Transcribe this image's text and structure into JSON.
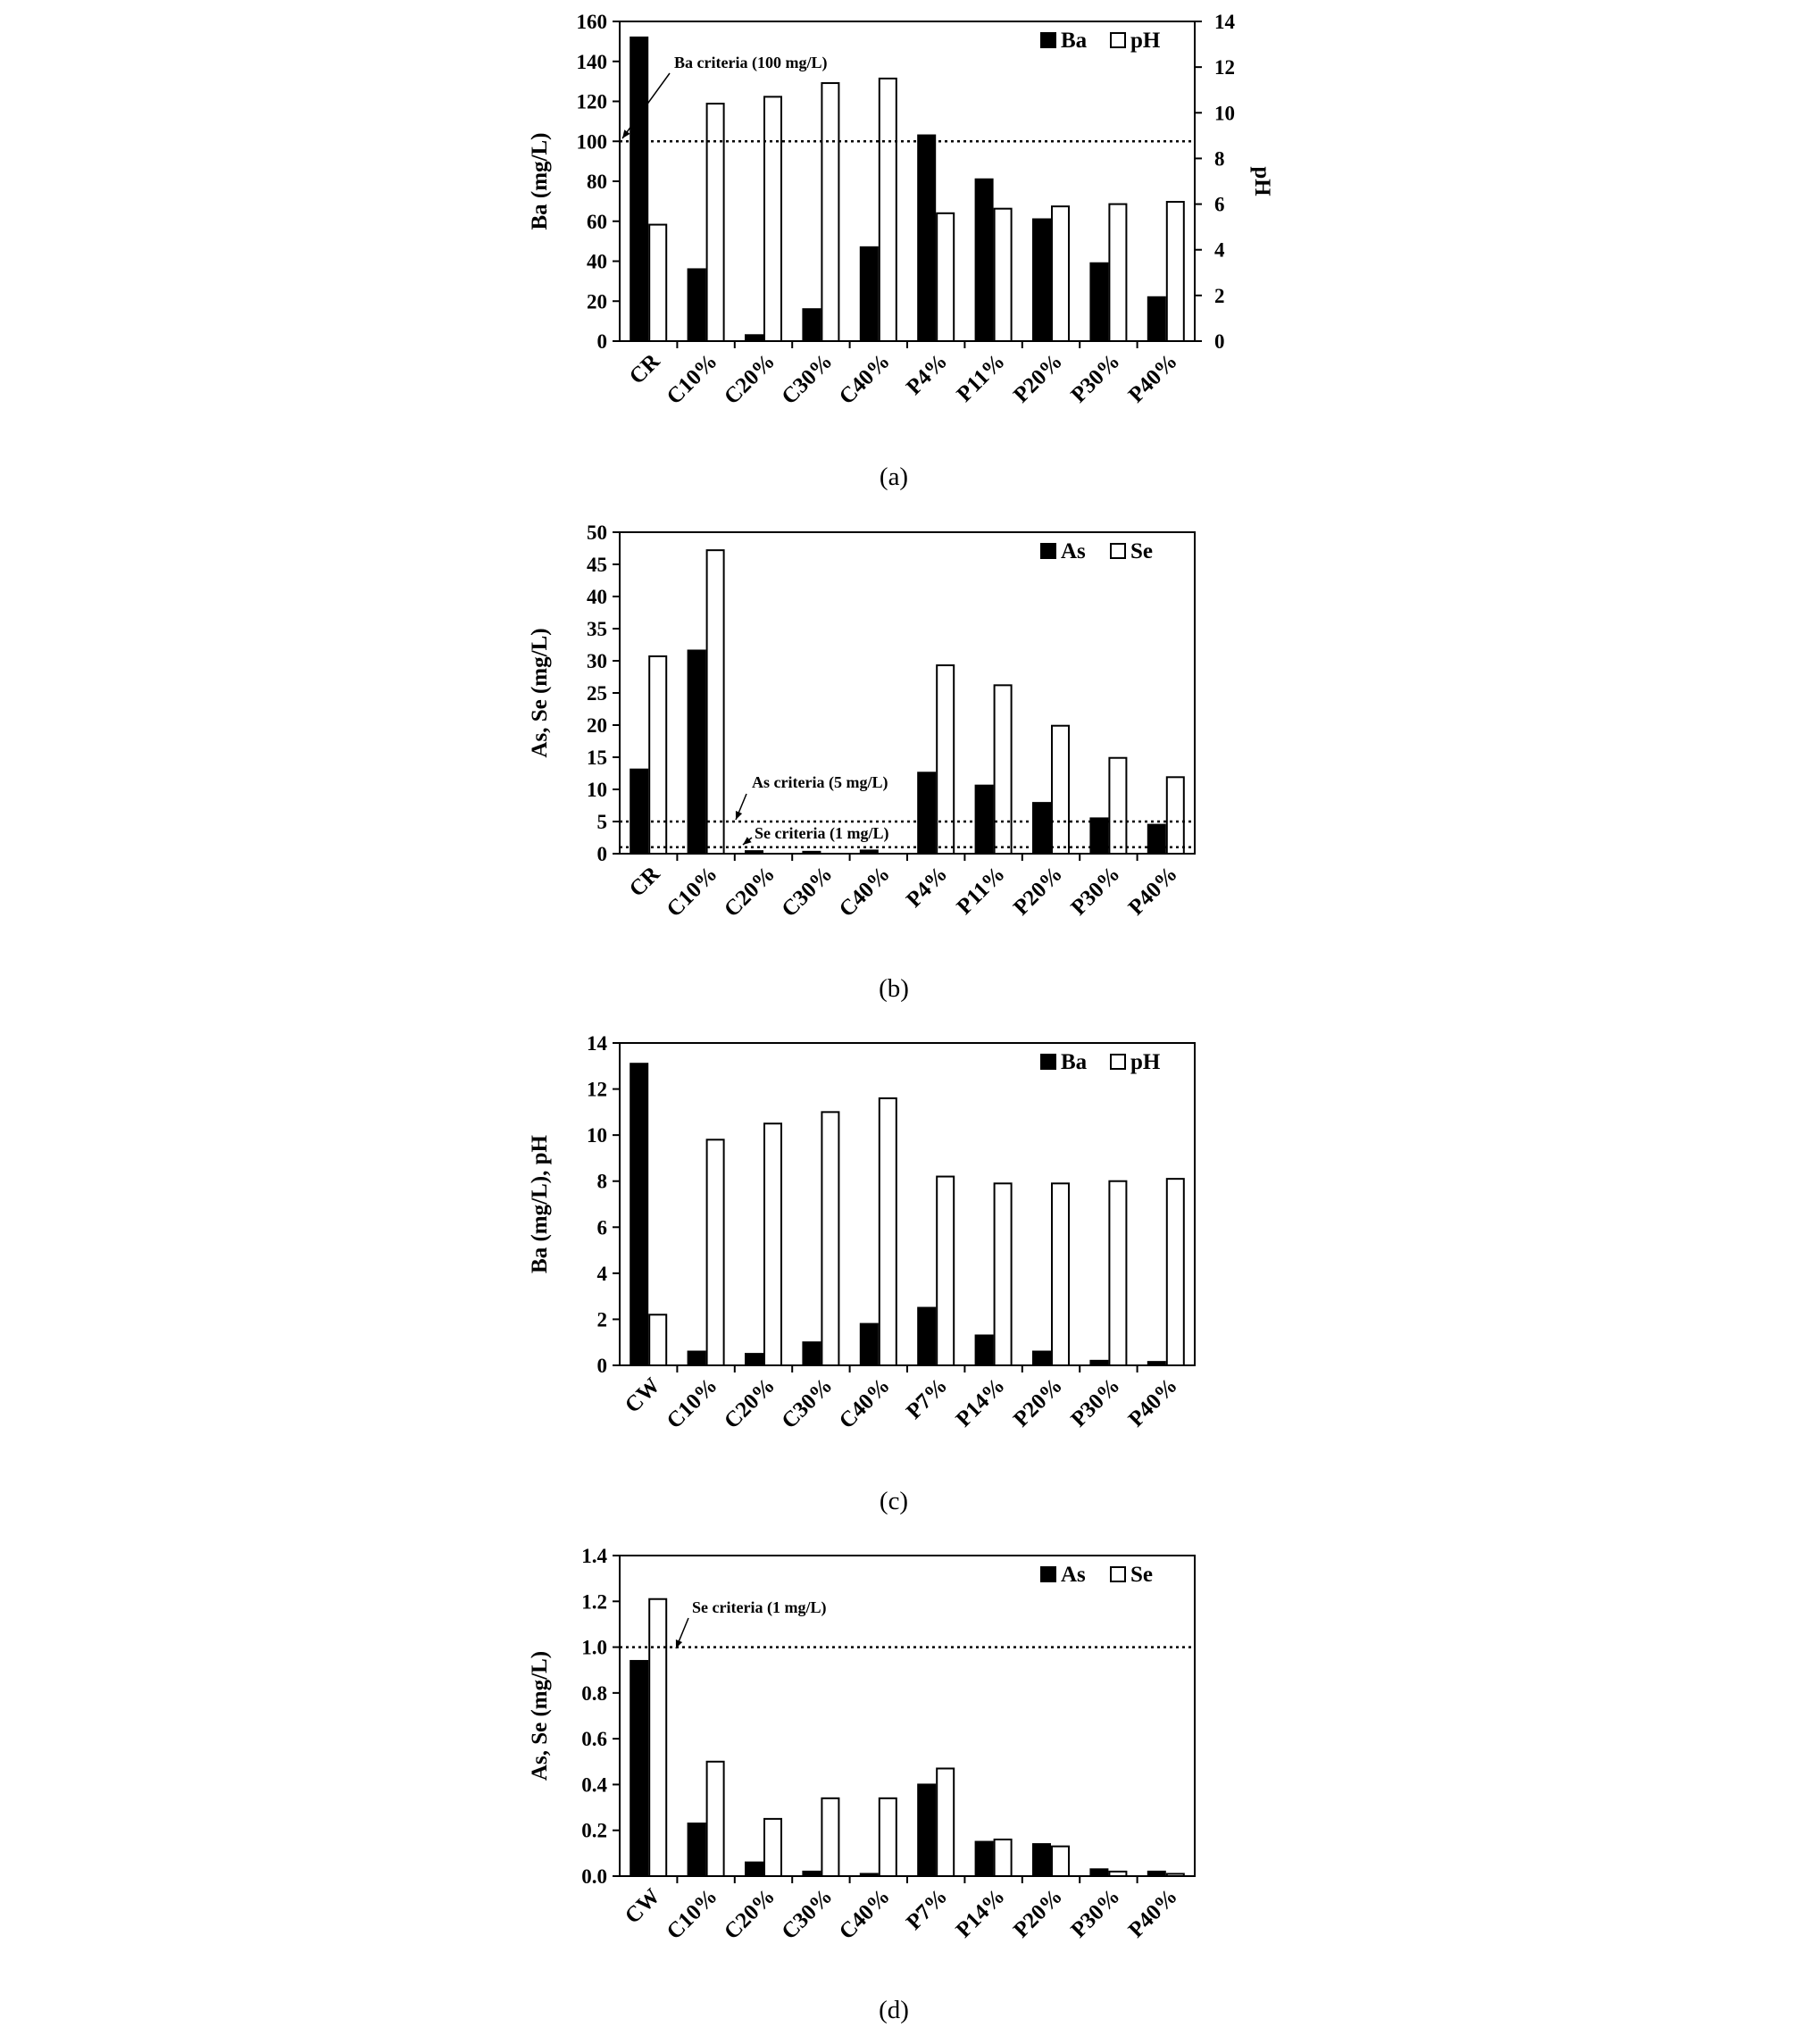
{
  "chart_data": [
    {
      "type": "bar",
      "panel_label": "(a)",
      "categories": [
        "CR",
        "C10%",
        "C20%",
        "C30%",
        "C40%",
        "P4%",
        "P11%",
        "P20%",
        "P30%",
        "P40%"
      ],
      "series": [
        {
          "name": "Ba",
          "axis": "left",
          "fill": "#000000",
          "values": [
            152,
            36,
            3,
            16,
            47,
            103,
            81,
            61,
            39,
            22
          ]
        },
        {
          "name": "pH",
          "axis": "right",
          "fill": "#ffffff",
          "values": [
            5.1,
            10.4,
            10.7,
            11.3,
            11.5,
            5.6,
            5.8,
            5.9,
            6.0,
            6.1
          ]
        }
      ],
      "ylabel": "Ba (mg/L)",
      "ylabel_right": "pH",
      "ylim": [
        0,
        160
      ],
      "yticks": [
        "0",
        "20",
        "40",
        "60",
        "80",
        "100",
        "120",
        "140",
        "160"
      ],
      "ylim_right": [
        0,
        14
      ],
      "yticks_right": [
        "0",
        "2",
        "4",
        "6",
        "8",
        "10",
        "12",
        "14"
      ],
      "reference_lines": [
        {
          "value": 100,
          "label": "Ba criteria (100 mg/L)"
        }
      ],
      "legend_position": "top-right"
    },
    {
      "type": "bar",
      "panel_label": "(b)",
      "categories": [
        "CR",
        "C10%",
        "C20%",
        "C30%",
        "C40%",
        "P4%",
        "P11%",
        "P20%",
        "P30%",
        "P40%"
      ],
      "series": [
        {
          "name": "As",
          "axis": "left",
          "fill": "#000000",
          "values": [
            13.1,
            31.6,
            0.4,
            0.3,
            0.5,
            12.6,
            10.6,
            7.9,
            5.5,
            4.5
          ]
        },
        {
          "name": "Se",
          "axis": "left",
          "fill": "#ffffff",
          "values": [
            30.7,
            47.2,
            0,
            0,
            0,
            29.3,
            26.2,
            19.9,
            14.9,
            11.9
          ]
        }
      ],
      "ylabel": "As, Se (mg/L)",
      "ylim": [
        0,
        50
      ],
      "yticks": [
        "0",
        "5",
        "10",
        "15",
        "20",
        "25",
        "30",
        "35",
        "40",
        "45",
        "50"
      ],
      "reference_lines": [
        {
          "value": 5,
          "label": "As criteria (5 mg/L)"
        },
        {
          "value": 1,
          "label": "Se criteria (1 mg/L)"
        }
      ],
      "legend_position": "top-right"
    },
    {
      "type": "bar",
      "panel_label": "(c)",
      "categories": [
        "CW",
        "C10%",
        "C20%",
        "C30%",
        "C40%",
        "P7%",
        "P14%",
        "P20%",
        "P30%",
        "P40%"
      ],
      "series": [
        {
          "name": "Ba",
          "axis": "left",
          "fill": "#000000",
          "values": [
            13.1,
            0.6,
            0.5,
            1.0,
            1.8,
            2.5,
            1.3,
            0.6,
            0.2,
            0.15
          ]
        },
        {
          "name": "pH",
          "axis": "left",
          "fill": "#ffffff",
          "values": [
            2.2,
            9.8,
            10.5,
            11.0,
            11.6,
            8.2,
            7.9,
            7.9,
            8.0,
            8.1
          ]
        }
      ],
      "ylabel": "Ba (mg/L), pH",
      "ylim": [
        0,
        14
      ],
      "yticks": [
        "0",
        "2",
        "4",
        "6",
        "8",
        "10",
        "12",
        "14"
      ],
      "reference_lines": [],
      "legend_position": "top-right"
    },
    {
      "type": "bar",
      "panel_label": "(d)",
      "categories": [
        "CW",
        "C10%",
        "C20%",
        "C30%",
        "C40%",
        "P7%",
        "P14%",
        "P20%",
        "P30%",
        "P40%"
      ],
      "series": [
        {
          "name": "As",
          "axis": "left",
          "fill": "#000000",
          "values": [
            0.94,
            0.23,
            0.06,
            0.02,
            0.01,
            0.4,
            0.15,
            0.14,
            0.03,
            0.02
          ]
        },
        {
          "name": "Se",
          "axis": "left",
          "fill": "#ffffff",
          "values": [
            1.21,
            0.5,
            0.25,
            0.34,
            0.34,
            0.47,
            0.16,
            0.13,
            0.02,
            0.01
          ]
        }
      ],
      "ylabel": "As, Se (mg/L)",
      "ylim": [
        0,
        1.4
      ],
      "yticks": [
        "0.0",
        "0.2",
        "0.4",
        "0.6",
        "0.8",
        "1.0",
        "1.2",
        "1.4"
      ],
      "reference_lines": [
        {
          "value": 1.0,
          "label": "Se criteria (1 mg/L)"
        }
      ],
      "legend_position": "top-right"
    }
  ]
}
